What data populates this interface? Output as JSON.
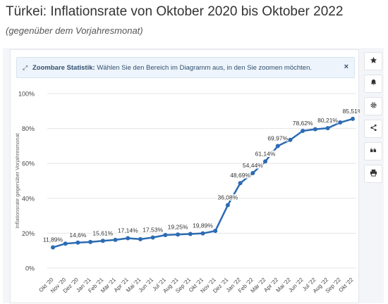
{
  "header": {
    "title": "Türkei: Inflationsrate von Oktober 2020 bis Oktober 2022",
    "subtitle": "(gegenüber dem Vorjahresmonat)"
  },
  "info": {
    "bold": "Zoombare Statistik:",
    "text": " Wählen Sie den Bereich im Diagramm aus, in den Sie zoomen möchten.",
    "close": "×"
  },
  "toolbar": [
    {
      "icon": "star-icon"
    },
    {
      "icon": "bell-icon"
    },
    {
      "icon": "gear-icon"
    },
    {
      "icon": "share-icon"
    },
    {
      "icon": "quote-icon"
    },
    {
      "icon": "print-icon"
    }
  ],
  "colors": {
    "line": "#2c6bb3",
    "grid": "#e4e4e4",
    "text": "#444444"
  },
  "chart_data": {
    "type": "line",
    "ylabel": "Inflationsrate gegenüber Vorjahresmonat",
    "ylim": [
      0,
      100
    ],
    "yticks": [
      "0%",
      "20%",
      "40%",
      "60%",
      "80%",
      "100%"
    ],
    "grid": true,
    "categories": [
      "Okt '20",
      "Nov '20",
      "Dez '20",
      "Jan '21",
      "Feb '21",
      "Mär '21",
      "Apr '21",
      "Mai '21",
      "Jun '21",
      "Jul '21",
      "Aug '21",
      "Sep '21",
      "Okt '21",
      "Nov '21",
      "Dez '21",
      "Jan '22",
      "Feb '22",
      "Mär '22",
      "Apr '22",
      "Mai '22",
      "Jun '22",
      "Jul '22",
      "Aug '22",
      "Sep '22",
      "Okt '22"
    ],
    "series": [
      {
        "values": [
          11.89,
          14.03,
          14.6,
          14.97,
          15.61,
          16.19,
          17.14,
          16.59,
          17.53,
          18.95,
          19.25,
          19.58,
          19.89,
          21.31,
          36.08,
          48.69,
          54.44,
          61.14,
          69.97,
          73.5,
          78.62,
          79.6,
          80.21,
          83.45,
          85.51
        ],
        "labels": [
          "11,89%",
          "",
          "14,6%",
          "",
          "15,61%",
          "",
          "17,14%",
          "",
          "17,53%",
          "",
          "19,25%",
          "",
          "19,89%",
          "",
          "36,08%",
          "48,69%",
          "54,44%",
          "61,14%",
          "69,97%",
          "",
          "78,62%",
          "",
          "80,21%",
          "",
          "85,51%"
        ]
      }
    ]
  }
}
